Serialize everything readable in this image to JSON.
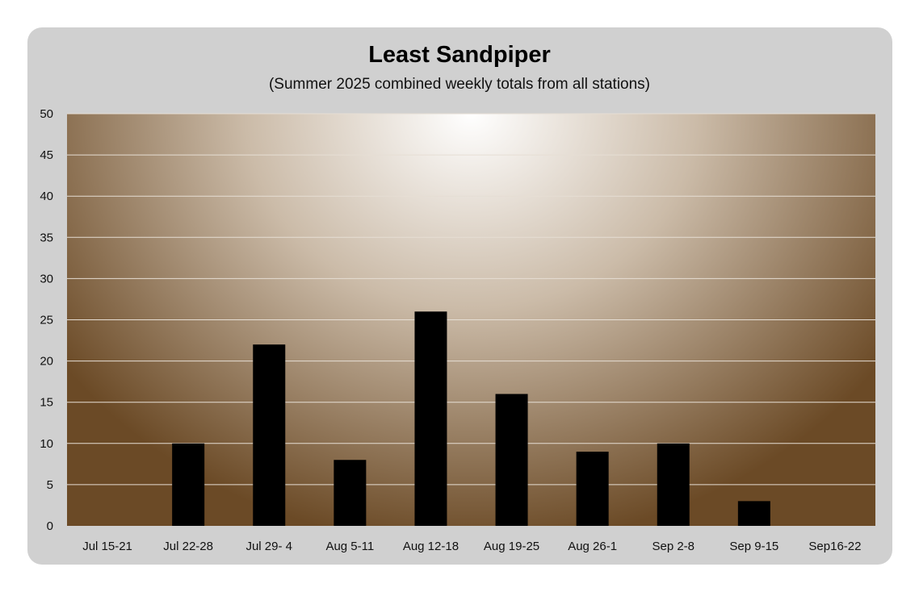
{
  "chart_data": {
    "type": "bar",
    "title": "Least Sandpiper",
    "subtitle": "(Summer 2025 combined weekly totals from all stations)",
    "xlabel": "",
    "ylabel": "",
    "categories": [
      "Jul 15-21",
      "Jul 22-28",
      "Jul 29- 4",
      "Aug 5-11",
      "Aug 12-18",
      "Aug 19-25",
      "Aug 26-1",
      "Sep 2-8",
      "Sep 9-15",
      "Sep16-22"
    ],
    "values": [
      0,
      10,
      22,
      8,
      26,
      16,
      9,
      10,
      3,
      0
    ],
    "ylim": [
      0,
      50
    ],
    "yticks": [
      0,
      5,
      10,
      15,
      20,
      25,
      30,
      35,
      40,
      45,
      50
    ],
    "grid": true,
    "legend": "none",
    "colors": {
      "bar": "#000000",
      "plot_center": "#ffffff",
      "plot_edge": "#6b4a26",
      "card": "#d0d0d0",
      "gridline": "#e6ded4"
    }
  }
}
